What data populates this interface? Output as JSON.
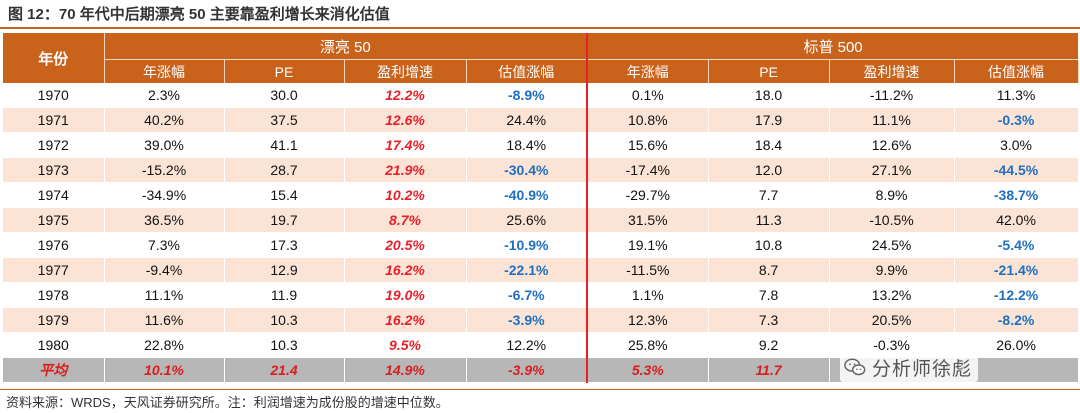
{
  "title": "图 12：70 年代中后期漂亮 50 主要靠盈利增长来消化估值",
  "headers": {
    "year": "年份",
    "group1": "漂亮 50",
    "group2": "标普 500",
    "cols": [
      "年涨幅",
      "PE",
      "盈利增速",
      "估值涨幅"
    ]
  },
  "rows": [
    {
      "year": "1970",
      "n50": [
        "2.3%",
        "30.0",
        "12.2%",
        "-8.9%"
      ],
      "sp": [
        "0.1%",
        "18.0",
        "-11.2%",
        "11.3%"
      ]
    },
    {
      "year": "1971",
      "n50": [
        "40.2%",
        "37.5",
        "12.6%",
        "24.4%"
      ],
      "sp": [
        "10.8%",
        "17.9",
        "11.1%",
        "-0.3%"
      ]
    },
    {
      "year": "1972",
      "n50": [
        "39.0%",
        "41.1",
        "17.4%",
        "18.4%"
      ],
      "sp": [
        "15.6%",
        "18.4",
        "12.6%",
        "3.0%"
      ]
    },
    {
      "year": "1973",
      "n50": [
        "-15.2%",
        "28.7",
        "21.9%",
        "-30.4%"
      ],
      "sp": [
        "-17.4%",
        "12.0",
        "27.1%",
        "-44.5%"
      ]
    },
    {
      "year": "1974",
      "n50": [
        "-34.9%",
        "15.4",
        "10.2%",
        "-40.9%"
      ],
      "sp": [
        "-29.7%",
        "7.7",
        "8.9%",
        "-38.7%"
      ]
    },
    {
      "year": "1975",
      "n50": [
        "36.5%",
        "19.7",
        "8.7%",
        "25.6%"
      ],
      "sp": [
        "31.5%",
        "11.3",
        "-10.5%",
        "42.0%"
      ]
    },
    {
      "year": "1976",
      "n50": [
        "7.3%",
        "17.3",
        "20.5%",
        "-10.9%"
      ],
      "sp": [
        "19.1%",
        "10.8",
        "24.5%",
        "-5.4%"
      ]
    },
    {
      "year": "1977",
      "n50": [
        "-9.4%",
        "12.9",
        "16.2%",
        "-22.1%"
      ],
      "sp": [
        "-11.5%",
        "8.7",
        "9.9%",
        "-21.4%"
      ]
    },
    {
      "year": "1978",
      "n50": [
        "11.1%",
        "11.9",
        "19.0%",
        "-6.7%"
      ],
      "sp": [
        "1.1%",
        "7.8",
        "13.2%",
        "-12.2%"
      ]
    },
    {
      "year": "1979",
      "n50": [
        "11.6%",
        "10.3",
        "16.2%",
        "-3.9%"
      ],
      "sp": [
        "12.3%",
        "7.3",
        "20.5%",
        "-8.2%"
      ]
    },
    {
      "year": "1980",
      "n50": [
        "22.8%",
        "10.3",
        "9.5%",
        "12.2%"
      ],
      "sp": [
        "25.8%",
        "9.2",
        "-0.3%",
        "26.0%"
      ]
    }
  ],
  "average": {
    "label": "平均",
    "n50": [
      "10.1%",
      "21.4",
      "14.9%",
      "-3.9%"
    ],
    "sp": [
      "5.3%",
      "11.7",
      "",
      ""
    ]
  },
  "source": "资料来源：WRDS，天风证券研究所。注：利润增速为成份股的增速中位数。",
  "watermark": "分析师徐彪",
  "colors": {
    "header": "#c9621b",
    "stripe": "#fbe4d6",
    "average_row": "#b7b7b7",
    "red": "#e8202a",
    "blue": "#1f6fc2"
  }
}
